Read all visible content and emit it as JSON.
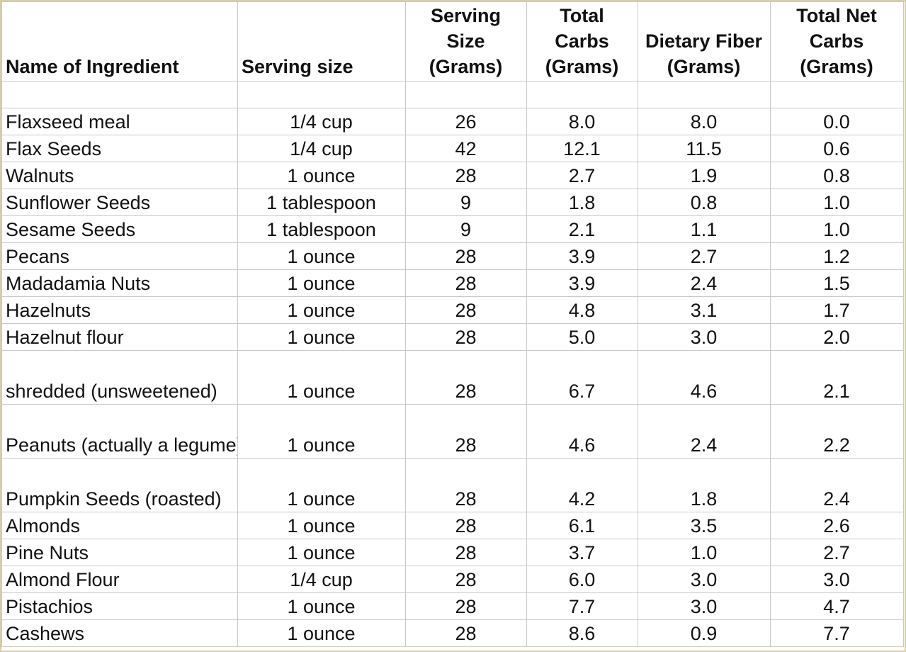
{
  "headers": {
    "name": "Name of Ingredient",
    "serving_size": "Serving size",
    "serving_grams": "Serving Size (Grams)",
    "total_carbs": "Total Carbs (Grams)",
    "fiber": "Dietary Fiber (Grams)",
    "net_carbs": "Total Net Carbs (Grams)"
  },
  "rows": [
    {
      "name": "Flaxseed meal",
      "serving": "1/4 cup",
      "grams": "26",
      "carbs": "8.0",
      "fiber": "8.0",
      "net": "0.0"
    },
    {
      "name": "Flax Seeds",
      "serving": "1/4 cup",
      "grams": "42",
      "carbs": "12.1",
      "fiber": "11.5",
      "net": "0.6"
    },
    {
      "name": "Walnuts",
      "serving": "1 ounce",
      "grams": "28",
      "carbs": "2.7",
      "fiber": "1.9",
      "net": "0.8"
    },
    {
      "name": "Sunflower Seeds",
      "serving": "1 tablespoon",
      "grams": "9",
      "carbs": "1.8",
      "fiber": "0.8",
      "net": "1.0"
    },
    {
      "name": "Sesame Seeds",
      "serving": "1 tablespoon",
      "grams": "9",
      "carbs": "2.1",
      "fiber": "1.1",
      "net": "1.0"
    },
    {
      "name": "Pecans",
      "serving": "1 ounce",
      "grams": "28",
      "carbs": "3.9",
      "fiber": "2.7",
      "net": "1.2"
    },
    {
      "name": "Madadamia Nuts",
      "serving": "1 ounce",
      "grams": "28",
      "carbs": "3.9",
      "fiber": "2.4",
      "net": "1.5"
    },
    {
      "name": "Hazelnuts",
      "serving": "1 ounce",
      "grams": "28",
      "carbs": "4.8",
      "fiber": "3.1",
      "net": "1.7"
    },
    {
      "name": "Hazelnut flour",
      "serving": "1 ounce",
      "grams": "28",
      "carbs": "5.0",
      "fiber": "3.0",
      "net": "2.0"
    },
    {
      "name": "shredded (unsweetened)",
      "serving": "1 ounce",
      "grams": "28",
      "carbs": "6.7",
      "fiber": "4.6",
      "net": "2.1"
    },
    {
      "name": "Peanuts (actually a legume)",
      "serving": "1 ounce",
      "grams": "28",
      "carbs": "4.6",
      "fiber": "2.4",
      "net": "2.2"
    },
    {
      "name": "Pumpkin Seeds (roasted)",
      "serving": "1 ounce",
      "grams": "28",
      "carbs": "4.2",
      "fiber": "1.8",
      "net": "2.4"
    },
    {
      "name": "Almonds",
      "serving": "1 ounce",
      "grams": "28",
      "carbs": "6.1",
      "fiber": "3.5",
      "net": "2.6"
    },
    {
      "name": "Pine Nuts",
      "serving": "1 ounce",
      "grams": "28",
      "carbs": "3.7",
      "fiber": "1.0",
      "net": "2.7"
    },
    {
      "name": "Almond Flour",
      "serving": "1/4 cup",
      "grams": "28",
      "carbs": "6.0",
      "fiber": "3.0",
      "net": "3.0"
    },
    {
      "name": "Pistachios",
      "serving": "1 ounce",
      "grams": "28",
      "carbs": "7.7",
      "fiber": "3.0",
      "net": "4.7"
    },
    {
      "name": "Cashews",
      "serving": "1 ounce",
      "grams": "28",
      "carbs": "8.6",
      "fiber": "0.9",
      "net": "7.7"
    }
  ]
}
